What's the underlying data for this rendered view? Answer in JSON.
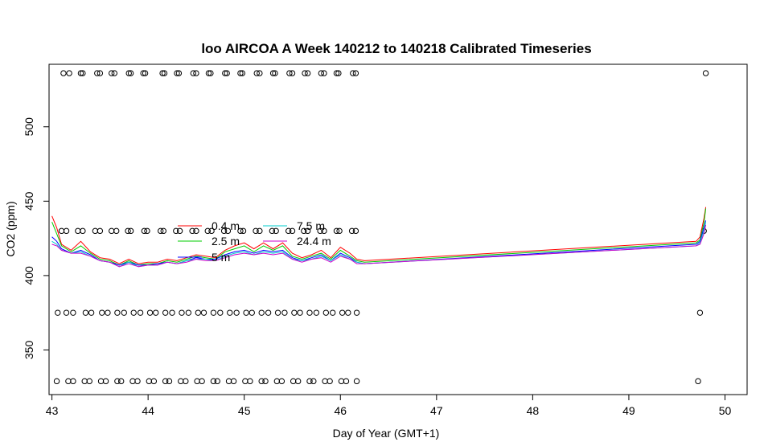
{
  "chart_data": {
    "type": "line",
    "title": "loo AIRCOA A  Week 140212 to 140218  Calibrated Timeseries",
    "xlabel": "Day of Year (GMT+1)",
    "ylabel": "CO2 (ppm)",
    "xlim": [
      42.97,
      50.23
    ],
    "ylim": [
      320,
      542
    ],
    "xticks": [
      43,
      44,
      45,
      46,
      47,
      48,
      49,
      50
    ],
    "yticks": [
      350,
      400,
      450,
      500
    ],
    "grid": false,
    "legend_position": "center-left",
    "series": [
      {
        "name": "0.4 m",
        "color": "#ff0000",
        "values": [
          [
            43.0,
            440
          ],
          [
            43.05,
            432
          ],
          [
            43.1,
            421
          ],
          [
            43.2,
            417
          ],
          [
            43.3,
            423
          ],
          [
            43.4,
            416
          ],
          [
            43.5,
            412
          ],
          [
            43.6,
            411
          ],
          [
            43.7,
            408
          ],
          [
            43.8,
            411
          ],
          [
            43.9,
            408
          ],
          [
            44.0,
            409
          ],
          [
            44.1,
            409
          ],
          [
            44.2,
            411
          ],
          [
            44.3,
            410
          ],
          [
            44.4,
            412
          ],
          [
            44.5,
            414
          ],
          [
            44.6,
            413
          ],
          [
            44.7,
            412
          ],
          [
            44.8,
            417
          ],
          [
            44.9,
            420
          ],
          [
            45.0,
            422
          ],
          [
            45.1,
            418
          ],
          [
            45.2,
            422
          ],
          [
            45.3,
            418
          ],
          [
            45.4,
            422
          ],
          [
            45.5,
            415
          ],
          [
            45.6,
            412
          ],
          [
            45.7,
            414
          ],
          [
            45.8,
            417
          ],
          [
            45.9,
            412
          ],
          [
            46.0,
            419
          ],
          [
            46.1,
            415
          ],
          [
            46.17,
            411
          ],
          [
            46.25,
            410
          ],
          [
            49.7,
            423
          ],
          [
            49.74,
            426
          ],
          [
            49.78,
            438
          ],
          [
            49.8,
            446
          ]
        ]
      },
      {
        "name": "2.5 m",
        "color": "#00cc00",
        "values": [
          [
            43.0,
            436
          ],
          [
            43.05,
            428
          ],
          [
            43.1,
            420
          ],
          [
            43.2,
            416
          ],
          [
            43.3,
            420
          ],
          [
            43.4,
            415
          ],
          [
            43.5,
            411
          ],
          [
            43.6,
            410
          ],
          [
            43.7,
            407
          ],
          [
            43.8,
            410
          ],
          [
            43.9,
            407
          ],
          [
            44.0,
            408
          ],
          [
            44.1,
            408
          ],
          [
            44.2,
            410
          ],
          [
            44.3,
            409
          ],
          [
            44.4,
            411
          ],
          [
            44.5,
            413
          ],
          [
            44.6,
            412
          ],
          [
            44.7,
            411
          ],
          [
            44.8,
            416
          ],
          [
            44.9,
            418
          ],
          [
            45.0,
            420
          ],
          [
            45.1,
            416
          ],
          [
            45.2,
            420
          ],
          [
            45.3,
            417
          ],
          [
            45.4,
            420
          ],
          [
            45.5,
            413
          ],
          [
            45.6,
            411
          ],
          [
            45.7,
            413
          ],
          [
            45.8,
            415
          ],
          [
            45.9,
            411
          ],
          [
            46.0,
            417
          ],
          [
            46.1,
            413
          ],
          [
            46.17,
            410
          ],
          [
            46.25,
            409
          ],
          [
            49.7,
            422
          ],
          [
            49.74,
            424
          ],
          [
            49.78,
            435
          ],
          [
            49.8,
            445
          ]
        ]
      },
      {
        "name": "5 m",
        "color": "#0000ff",
        "values": [
          [
            43.0,
            426
          ],
          [
            43.05,
            423
          ],
          [
            43.1,
            418
          ],
          [
            43.2,
            415
          ],
          [
            43.3,
            417
          ],
          [
            43.4,
            414
          ],
          [
            43.5,
            410
          ],
          [
            43.6,
            409
          ],
          [
            43.7,
            407
          ],
          [
            43.8,
            409
          ],
          [
            43.9,
            407
          ],
          [
            44.0,
            407
          ],
          [
            44.1,
            408
          ],
          [
            44.2,
            409
          ],
          [
            44.3,
            408
          ],
          [
            44.4,
            410
          ],
          [
            44.5,
            412
          ],
          [
            44.6,
            411
          ],
          [
            44.7,
            411
          ],
          [
            44.8,
            414
          ],
          [
            44.9,
            416
          ],
          [
            45.0,
            417
          ],
          [
            45.1,
            415
          ],
          [
            45.2,
            417
          ],
          [
            45.3,
            416
          ],
          [
            45.4,
            417
          ],
          [
            45.5,
            412
          ],
          [
            45.6,
            410
          ],
          [
            45.7,
            412
          ],
          [
            45.8,
            414
          ],
          [
            45.9,
            410
          ],
          [
            46.0,
            415
          ],
          [
            46.1,
            412
          ],
          [
            46.17,
            409
          ],
          [
            46.25,
            408
          ],
          [
            49.7,
            421
          ],
          [
            49.74,
            423
          ],
          [
            49.78,
            432
          ],
          [
            49.8,
            437
          ]
        ]
      },
      {
        "name": "7.5 m",
        "color": "#00cccc",
        "values": [
          [
            43.0,
            423
          ],
          [
            43.05,
            421
          ],
          [
            43.1,
            417
          ],
          [
            43.2,
            415
          ],
          [
            43.3,
            416
          ],
          [
            43.4,
            413
          ],
          [
            43.5,
            410
          ],
          [
            43.6,
            409
          ],
          [
            43.7,
            406
          ],
          [
            43.8,
            409
          ],
          [
            43.9,
            406
          ],
          [
            44.0,
            407
          ],
          [
            44.1,
            407
          ],
          [
            44.2,
            409
          ],
          [
            44.3,
            408
          ],
          [
            44.4,
            410
          ],
          [
            44.5,
            411
          ],
          [
            44.6,
            411
          ],
          [
            44.7,
            410
          ],
          [
            44.8,
            413
          ],
          [
            44.9,
            415
          ],
          [
            45.0,
            416
          ],
          [
            45.1,
            414
          ],
          [
            45.2,
            416
          ],
          [
            45.3,
            415
          ],
          [
            45.4,
            416
          ],
          [
            45.5,
            411
          ],
          [
            45.6,
            410
          ],
          [
            45.7,
            411
          ],
          [
            45.8,
            413
          ],
          [
            45.9,
            410
          ],
          [
            46.0,
            414
          ],
          [
            46.1,
            411
          ],
          [
            46.17,
            409
          ],
          [
            46.25,
            408
          ],
          [
            49.7,
            420
          ],
          [
            49.74,
            422
          ],
          [
            49.78,
            430
          ],
          [
            49.8,
            436
          ]
        ]
      },
      {
        "name": "24.4 m",
        "color": "#cc00cc",
        "values": [
          [
            43.0,
            421
          ],
          [
            43.05,
            420
          ],
          [
            43.1,
            417
          ],
          [
            43.2,
            415
          ],
          [
            43.3,
            415
          ],
          [
            43.4,
            413
          ],
          [
            43.5,
            410
          ],
          [
            43.6,
            409
          ],
          [
            43.7,
            406
          ],
          [
            43.8,
            408
          ],
          [
            43.9,
            406
          ],
          [
            44.0,
            407
          ],
          [
            44.1,
            407
          ],
          [
            44.2,
            409
          ],
          [
            44.3,
            408
          ],
          [
            44.4,
            409
          ],
          [
            44.5,
            411
          ],
          [
            44.6,
            410
          ],
          [
            44.7,
            410
          ],
          [
            44.8,
            412
          ],
          [
            44.9,
            414
          ],
          [
            45.0,
            415
          ],
          [
            45.1,
            414
          ],
          [
            45.2,
            415
          ],
          [
            45.3,
            414
          ],
          [
            45.4,
            415
          ],
          [
            45.5,
            411
          ],
          [
            45.6,
            409
          ],
          [
            45.7,
            411
          ],
          [
            45.8,
            412
          ],
          [
            45.9,
            409
          ],
          [
            46.0,
            413
          ],
          [
            46.1,
            411
          ],
          [
            46.17,
            408
          ],
          [
            46.25,
            408
          ],
          [
            49.7,
            420
          ],
          [
            49.74,
            421
          ],
          [
            49.78,
            428
          ],
          [
            49.8,
            434
          ]
        ]
      }
    ],
    "scatter_series": [
      {
        "y": 536,
        "x": [
          43.12,
          43.18,
          43.3,
          43.32,
          43.47,
          43.5,
          43.62,
          43.65,
          43.8,
          43.82,
          43.95,
          43.97,
          44.15,
          44.17,
          44.3,
          44.32,
          44.47,
          44.5,
          44.63,
          44.65,
          44.8,
          44.82,
          44.96,
          44.98,
          45.13,
          45.16,
          45.3,
          45.32,
          45.47,
          45.5,
          45.63,
          45.66,
          45.8,
          45.83,
          45.96,
          45.98,
          46.13,
          46.16,
          49.8
        ]
      },
      {
        "y": 430,
        "x": [
          43.1,
          43.15,
          43.27,
          43.32,
          43.45,
          43.5,
          43.62,
          43.67,
          43.79,
          43.82,
          43.96,
          43.99,
          44.13,
          44.16,
          44.29,
          44.33,
          44.46,
          44.5,
          44.62,
          44.66,
          44.79,
          44.83,
          44.96,
          44.99,
          45.12,
          45.16,
          45.29,
          45.33,
          45.46,
          45.5,
          45.62,
          45.66,
          45.79,
          45.83,
          45.96,
          45.99,
          46.12,
          46.16,
          49.78
        ]
      },
      {
        "y": 375,
        "x": [
          43.06,
          43.15,
          43.22,
          43.35,
          43.41,
          43.52,
          43.58,
          43.68,
          43.75,
          43.85,
          43.92,
          44.02,
          44.08,
          44.18,
          44.25,
          44.35,
          44.42,
          44.52,
          44.58,
          44.68,
          44.75,
          44.85,
          44.92,
          45.02,
          45.08,
          45.18,
          45.25,
          45.35,
          45.42,
          45.52,
          45.58,
          45.68,
          45.75,
          45.85,
          45.92,
          46.02,
          46.08,
          46.17,
          49.74
        ]
      },
      {
        "y": 329,
        "x": [
          43.05,
          43.17,
          43.22,
          43.34,
          43.39,
          43.51,
          43.56,
          43.68,
          43.72,
          43.84,
          43.89,
          44.01,
          44.06,
          44.18,
          44.22,
          44.34,
          44.39,
          44.51,
          44.56,
          44.68,
          44.72,
          44.84,
          44.89,
          45.01,
          45.06,
          45.18,
          45.22,
          45.34,
          45.39,
          45.51,
          45.56,
          45.68,
          45.72,
          45.84,
          45.89,
          46.01,
          46.06,
          46.17,
          49.72
        ]
      }
    ]
  }
}
